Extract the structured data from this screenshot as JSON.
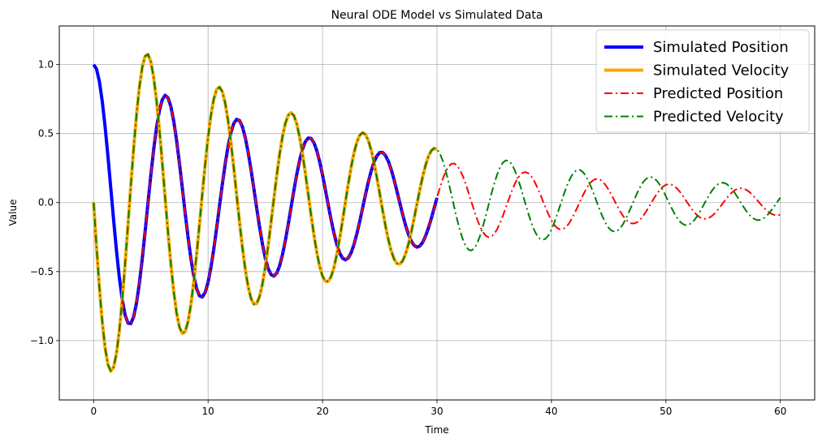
{
  "chart_data": {
    "type": "line",
    "title": "Neural ODE Model vs Simulated Data",
    "xlabel": "Time",
    "ylabel": "Value",
    "xlim": [
      -3,
      63
    ],
    "ylim": [
      -1.43,
      1.28
    ],
    "xticks": [
      0,
      10,
      20,
      30,
      40,
      50,
      60
    ],
    "xtick_labels": [
      "0",
      "10",
      "20",
      "30",
      "40",
      "50",
      "60"
    ],
    "yticks": [
      -1.0,
      -0.5,
      0.0,
      0.5,
      1.0
    ],
    "ytick_labels": [
      "−1.0",
      "−0.5",
      "0.0",
      "0.5",
      "1.0"
    ],
    "grid": true,
    "legend_position": "top-right",
    "model": {
      "simulated": {
        "t_start": 0,
        "t_end": 30,
        "step": 0.25,
        "amplitude": 1.3,
        "decay": 0.04,
        "omega": 1.0
      },
      "predicted": {
        "t_start": 2.5,
        "t_end": 60,
        "step": 0.25,
        "amplitude": 1.3,
        "decay": 0.04,
        "omega": 1.0
      },
      "predicted_velocity_start": 0
    },
    "series": [
      {
        "name": "Simulated Position",
        "quantity": "position",
        "source": "simulated",
        "color": "#0000ff",
        "dash": "solid",
        "width": 4
      },
      {
        "name": "Simulated Velocity",
        "quantity": "velocity",
        "source": "simulated",
        "color": "#ffa500",
        "dash": "solid",
        "width": 4
      },
      {
        "name": "Predicted Position",
        "quantity": "position",
        "source": "predicted",
        "color": "#ff0000",
        "dash": "dashdot",
        "width": 2
      },
      {
        "name": "Predicted Velocity",
        "quantity": "velocity",
        "source": "predicted",
        "color": "#008000",
        "dash": "dashdot",
        "width": 2
      }
    ]
  }
}
